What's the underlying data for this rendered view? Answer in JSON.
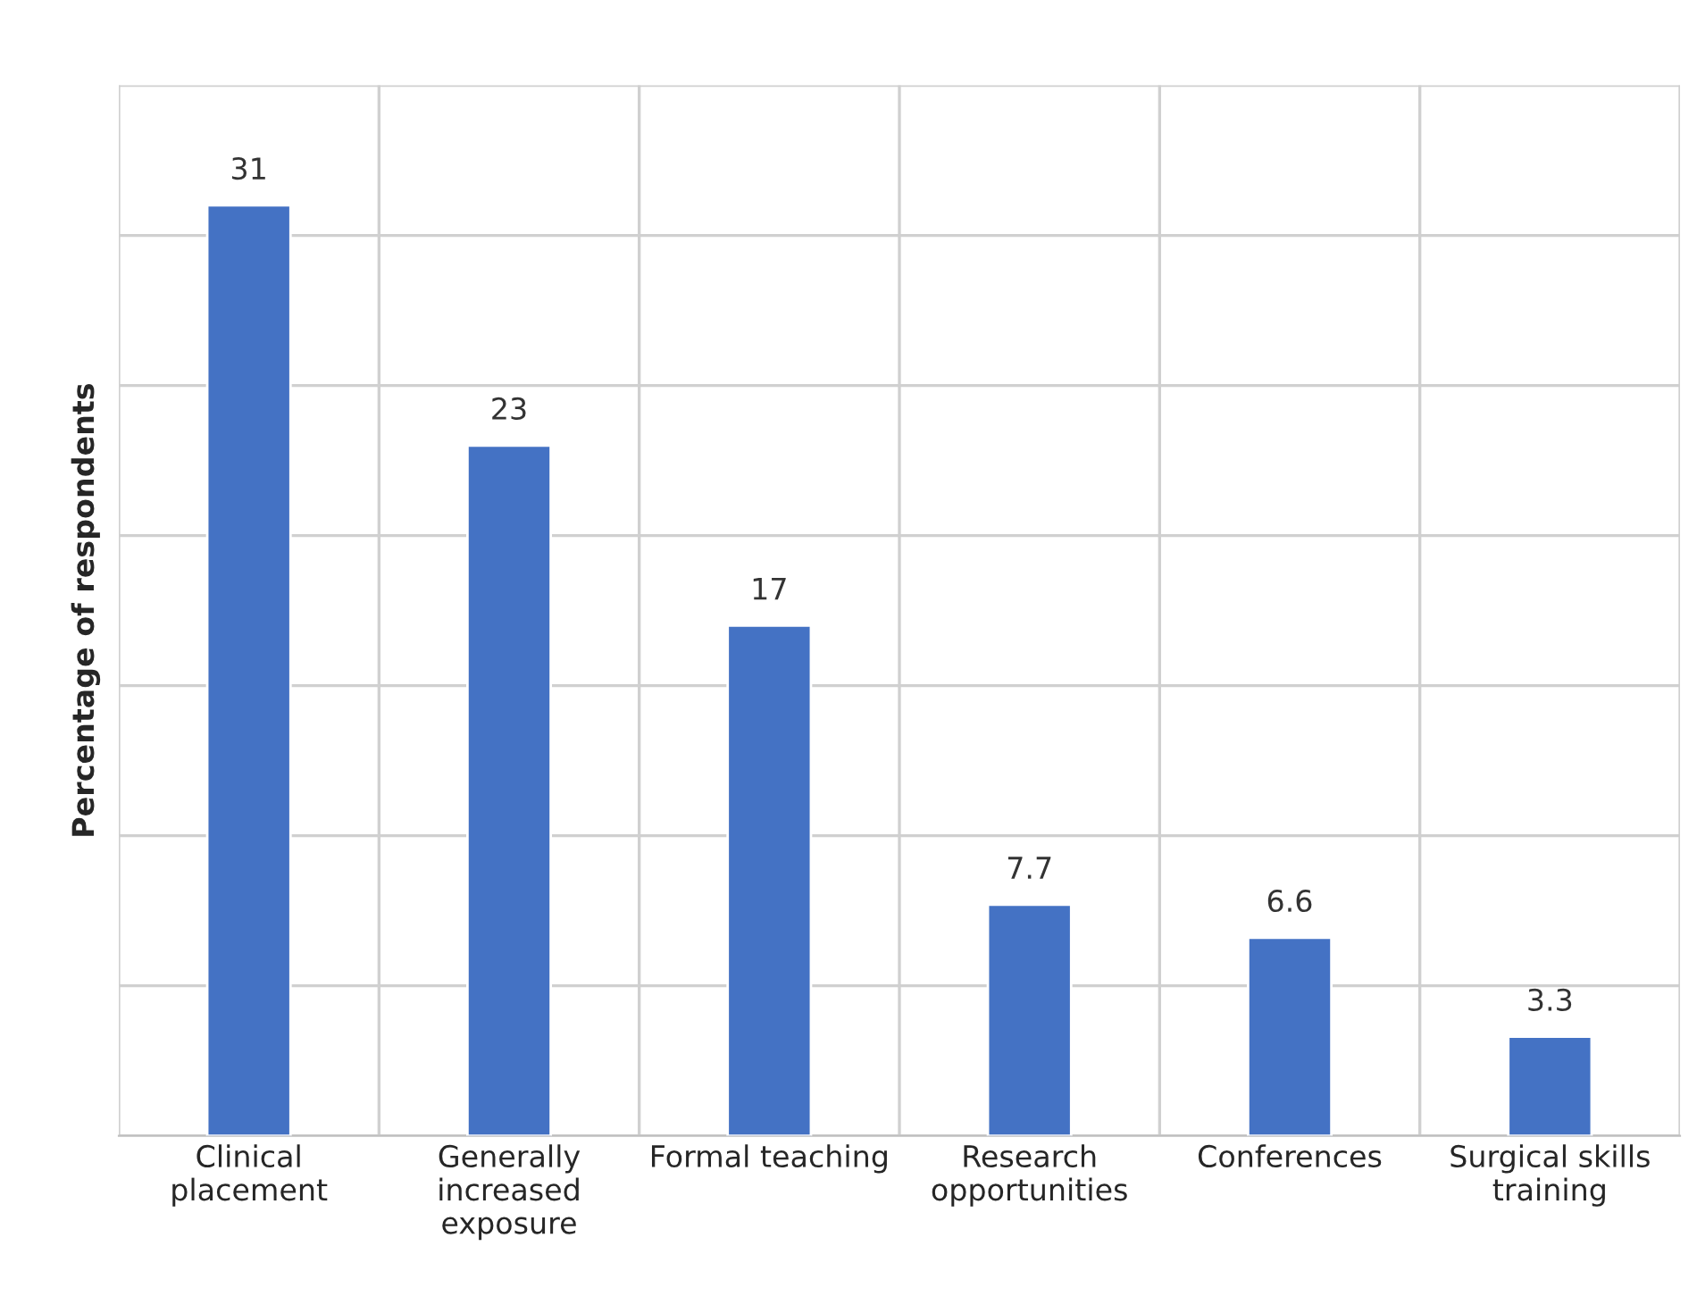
{
  "chart_data": {
    "type": "bar",
    "ylabel": "Percentage of respondents",
    "categories": [
      "Clinical placement",
      "Generally increased exposure",
      "Formal teaching",
      "Research opportunities",
      "Conferences",
      "Surgical skills training"
    ],
    "values": [
      31,
      23,
      17,
      7.7,
      6.6,
      3.3
    ],
    "color": "#4472c4",
    "data_labels": true,
    "ylim": [
      0,
      35
    ],
    "yticks": [
      {
        "value": 0,
        "label": null
      },
      {
        "value": 5,
        "label": null
      },
      {
        "value": 10,
        "label": null
      },
      {
        "value": 15,
        "label": null
      },
      {
        "value": 20,
        "label": null
      },
      {
        "value": 25,
        "label": null
      },
      {
        "value": 30,
        "label": null
      },
      {
        "value": 35,
        "label": null
      }
    ],
    "tick_labels": "x",
    "grid": true
  }
}
